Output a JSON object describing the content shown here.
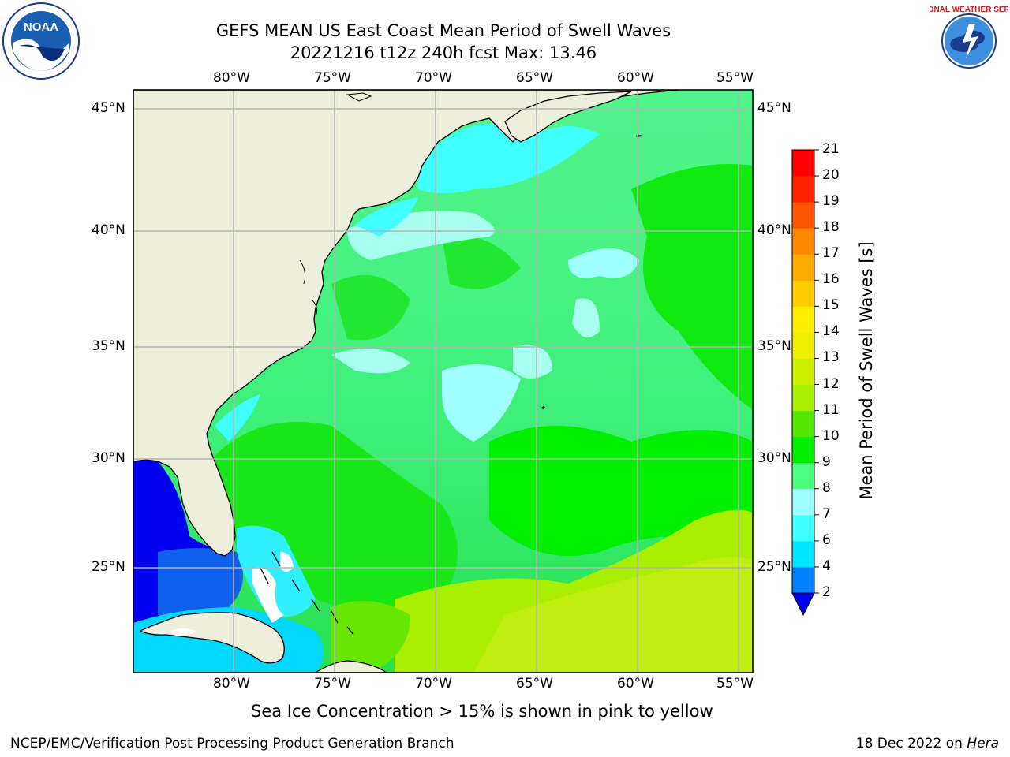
{
  "header": {
    "title_line1": "GEFS MEAN US East Coast Mean Period of Swell Waves",
    "title_line2": "20221216 t12z 240h fcst   Max: 13.46"
  },
  "map": {
    "lon_labels": [
      "80°W",
      "75°W",
      "70°W",
      "65°W",
      "60°W",
      "55°W"
    ],
    "lat_labels": [
      "45°N",
      "40°N",
      "35°N",
      "30°N",
      "25°N"
    ],
    "land_color": "#eeeedc",
    "grid_color": "#b4b4b4"
  },
  "colorbar": {
    "title": "Mean Period of Swell Waves [s]",
    "ticks": [
      "2",
      "4",
      "6",
      "7",
      "8",
      "9",
      "10",
      "11",
      "12",
      "13",
      "14",
      "15",
      "16",
      "17",
      "18",
      "19",
      "20",
      "21"
    ],
    "colors": [
      "#0000ee",
      "#0080ff",
      "#00e5ff",
      "#40ffff",
      "#a0ffff",
      "#4dff80",
      "#00ee00",
      "#55e600",
      "#aaee00",
      "#ccee00",
      "#eeee00",
      "#ffee00",
      "#ffcc00",
      "#ffaa00",
      "#ff8800",
      "#ff5500",
      "#ff2200",
      "#ff0000"
    ]
  },
  "logos": {
    "noaa_text": "NOAA",
    "nws_text": "NATIONAL WEATHER SERVICE"
  },
  "footer": {
    "note": "Sea Ice Concentration > 15% is shown in pink to yellow",
    "credit_left": "NCEP/EMC/Verification Post Processing Product Generation Branch",
    "credit_date": "18 Dec 2022 on ",
    "credit_machine": "Hera"
  }
}
